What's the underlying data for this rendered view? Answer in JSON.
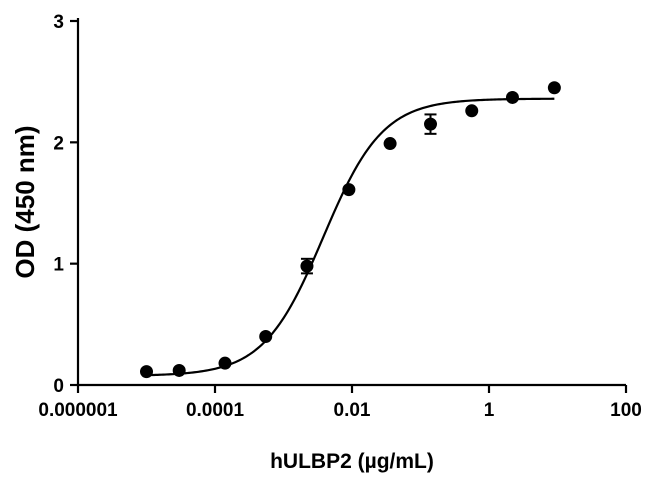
{
  "chart_data": {
    "type": "scatter",
    "title": "",
    "xlabel": "hULBP2 (µg/mL)",
    "ylabel": "OD (450 nm)",
    "x_scale": "log",
    "xlim": [
      1e-06,
      100
    ],
    "ylim": [
      0,
      3
    ],
    "x_ticks": [
      1e-06,
      0.0001,
      0.01,
      1,
      100
    ],
    "x_tick_labels": [
      "0.000001",
      "0.0001",
      "0.01",
      "1",
      "100"
    ],
    "y_ticks": [
      0,
      1,
      2,
      3
    ],
    "y_tick_labels": [
      "0",
      "1",
      "2",
      "3"
    ],
    "grid": false,
    "legend": "none",
    "series": [
      {
        "marker": "filled-circle",
        "x": [
          1e-05,
          3e-05,
          0.00014,
          0.00055,
          0.0022,
          0.009,
          0.036,
          0.14,
          0.56,
          2.2,
          9.0
        ],
        "y": [
          0.11,
          0.12,
          0.18,
          0.4,
          0.98,
          1.61,
          1.99,
          2.15,
          2.26,
          2.37,
          2.45
        ],
        "error": [
          0,
          0,
          0,
          0,
          0.06,
          0,
          0,
          0.08,
          0,
          0,
          0
        ]
      }
    ],
    "fit": {
      "type": "4PL",
      "bottom": 0.075,
      "top": 2.36,
      "ec50": 0.0038,
      "hill": 1.0,
      "x_range": [
        1e-05,
        9.0
      ]
    }
  }
}
